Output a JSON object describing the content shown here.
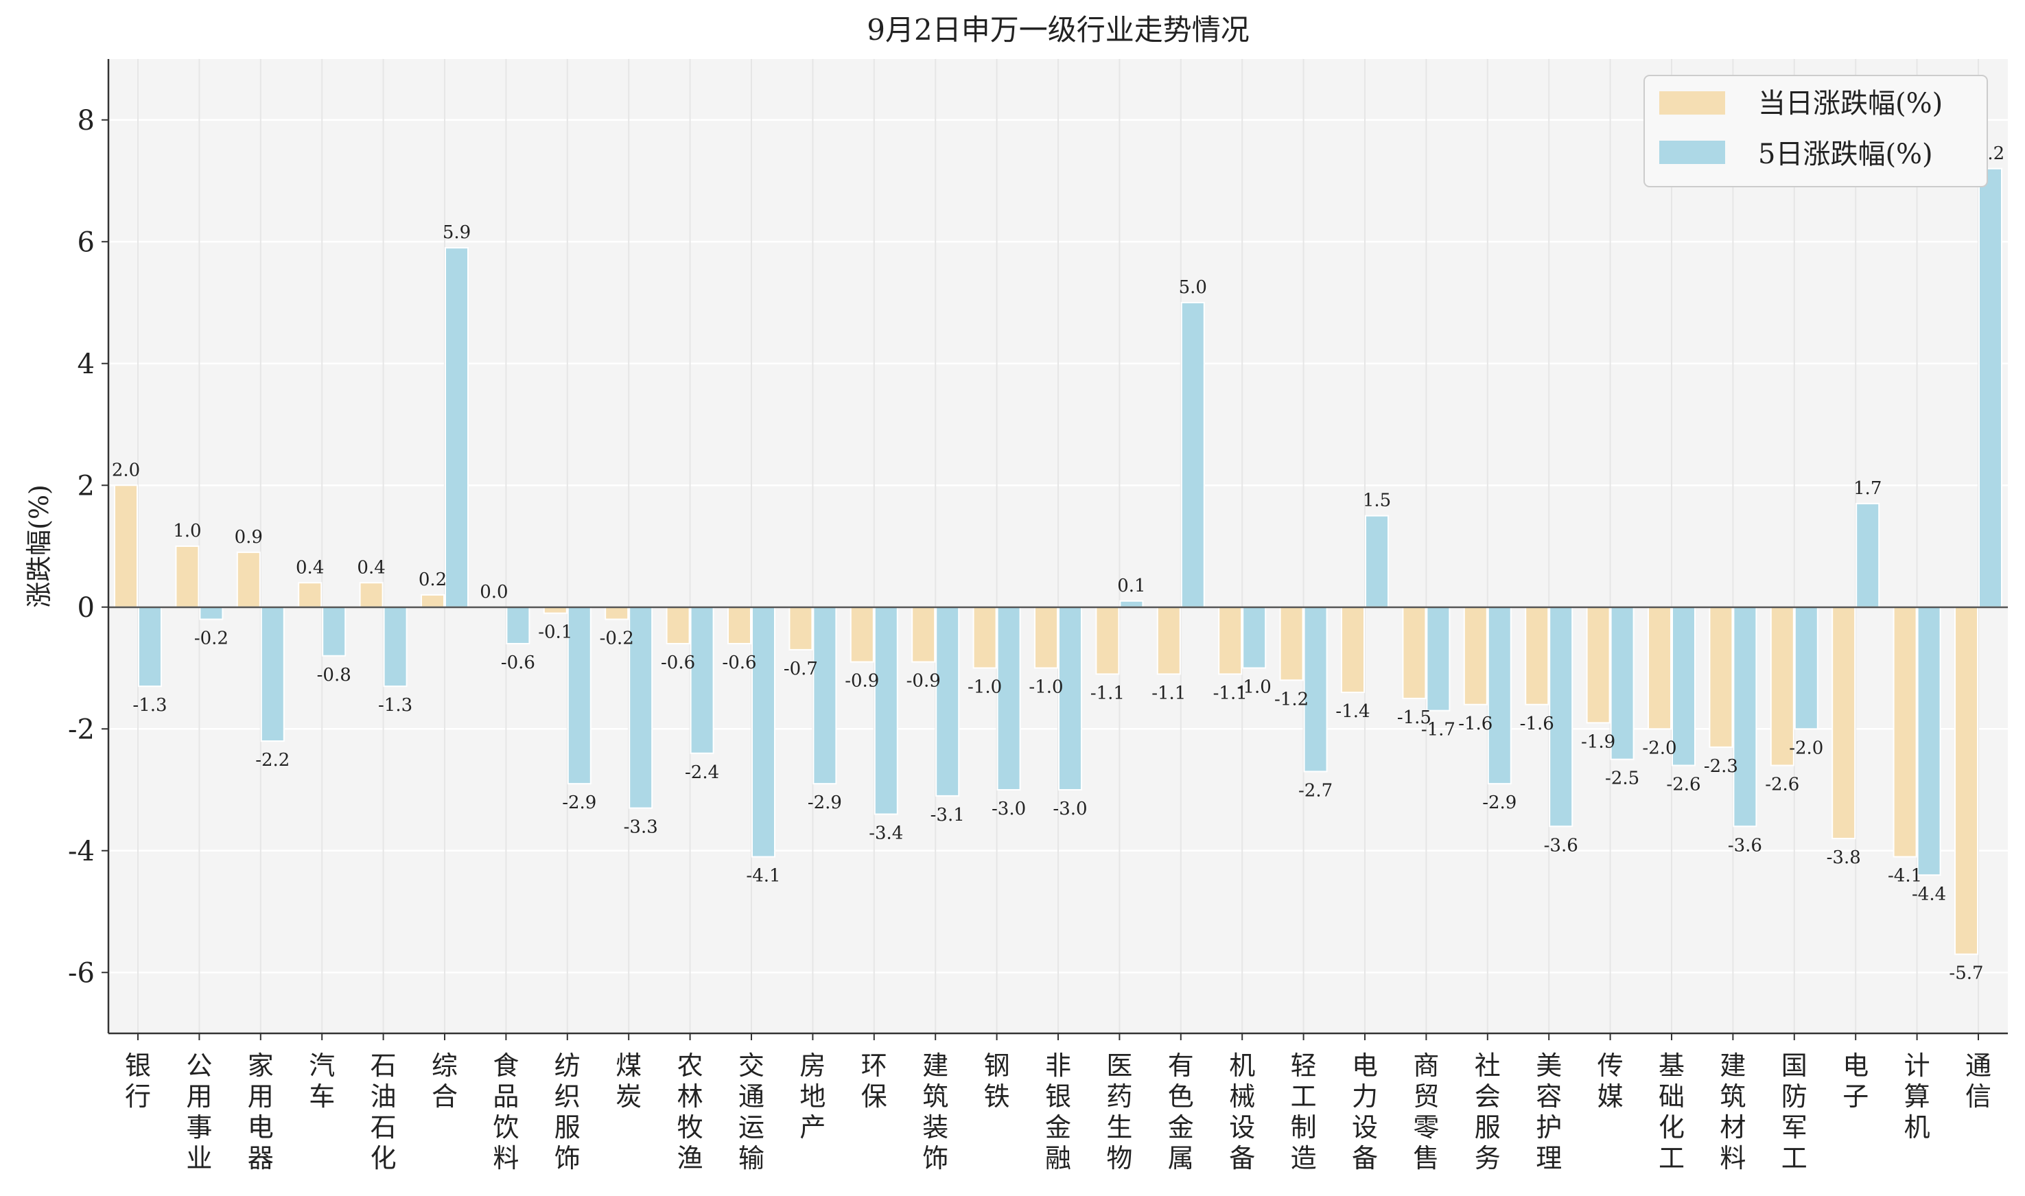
{
  "chart_data": {
    "type": "bar",
    "title": "9月2日申万一级行业走势情况",
    "ylabel": "涨跌幅(%)",
    "xlabel": "",
    "ylim": [
      -7,
      9
    ],
    "yticks": [
      -6,
      -4,
      -2,
      0,
      2,
      4,
      6,
      8
    ],
    "grid": true,
    "legend_position": "top-right",
    "colors": {
      "daily": "#f5deb3",
      "five_day": "#add8e6",
      "plot_bg": "#f4f4f4",
      "grid": "#ffffff",
      "zero_line": "#555555"
    },
    "categories": [
      "银行",
      "公用事业",
      "家用电器",
      "汽车",
      "石油石化",
      "综合",
      "食品饮料",
      "纺织服饰",
      "煤炭",
      "农林牧渔",
      "交通运输",
      "房地产",
      "环保",
      "建筑装饰",
      "钢铁",
      "非银金融",
      "医药生物",
      "有色金属",
      "机械设备",
      "轻工制造",
      "电力设备",
      "商贸零售",
      "社会服务",
      "美容护理",
      "传媒",
      "基础化工",
      "建筑材料",
      "国防军工",
      "电子",
      "计算机",
      "通信"
    ],
    "series": [
      {
        "name": "当日涨跌幅(%)",
        "values": [
          2.0,
          1.0,
          0.9,
          0.4,
          0.4,
          0.2,
          0.0,
          -0.1,
          -0.2,
          -0.6,
          -0.6,
          -0.7,
          -0.9,
          -0.9,
          -1.0,
          -1.0,
          -1.1,
          -1.1,
          -1.1,
          -1.2,
          -1.4,
          -1.5,
          -1.6,
          -1.6,
          -1.9,
          -2.0,
          -2.3,
          -2.6,
          -3.8,
          -4.1,
          -5.7
        ]
      },
      {
        "name": "5日涨跌幅(%)",
        "values": [
          -1.3,
          -0.2,
          -2.2,
          -0.8,
          -1.3,
          5.9,
          -0.6,
          -2.9,
          -3.3,
          -2.4,
          -4.1,
          -2.9,
          -3.4,
          -3.1,
          -3.0,
          -3.0,
          0.1,
          5.0,
          -1.0,
          -2.7,
          1.5,
          -1.7,
          -2.9,
          -3.6,
          -2.5,
          -2.6,
          -3.6,
          -2.0,
          1.7,
          -4.4,
          7.2
        ]
      }
    ]
  }
}
